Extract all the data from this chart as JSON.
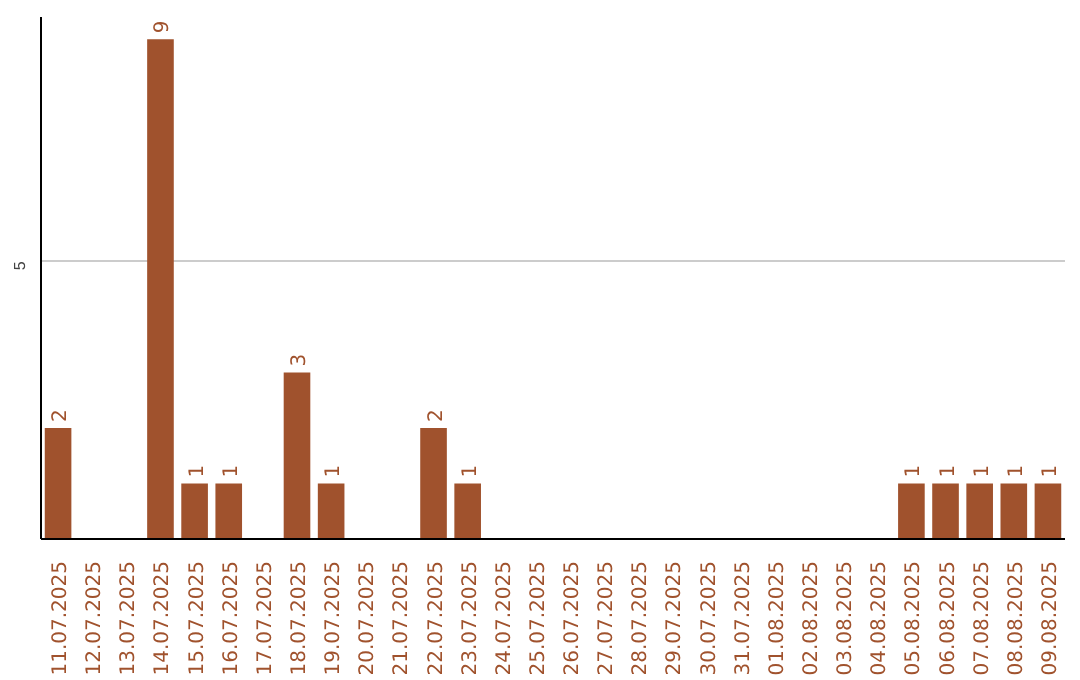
{
  "chart_data": {
    "type": "bar",
    "categories": [
      "11.07.2025",
      "12.07.2025",
      "13.07.2025",
      "14.07.2025",
      "15.07.2025",
      "16.07.2025",
      "17.07.2025",
      "18.07.2025",
      "19.07.2025",
      "20.07.2025",
      "21.07.2025",
      "22.07.2025",
      "23.07.2025",
      "24.07.2025",
      "25.07.2025",
      "26.07.2025",
      "27.07.2025",
      "28.07.2025",
      "29.07.2025",
      "30.07.2025",
      "31.07.2025",
      "01.08.2025",
      "02.08.2025",
      "03.08.2025",
      "04.08.2025",
      "05.08.2025",
      "06.08.2025",
      "07.08.2025",
      "08.08.2025",
      "09.08.2025"
    ],
    "values": [
      2,
      0,
      0,
      9,
      1,
      1,
      0,
      3,
      1,
      0,
      0,
      2,
      1,
      0,
      0,
      0,
      0,
      0,
      0,
      0,
      0,
      0,
      0,
      0,
      0,
      1,
      1,
      1,
      1,
      1
    ],
    "value_labels": [
      "2",
      null,
      null,
      "9",
      "1",
      "1",
      null,
      "3",
      "1",
      null,
      null,
      "2",
      "1",
      null,
      null,
      null,
      null,
      null,
      null,
      null,
      null,
      null,
      null,
      null,
      null,
      "1",
      "1",
      "1",
      "1",
      "1"
    ],
    "color": "#a0522d",
    "ylim": [
      0,
      9.4
    ],
    "yticks": [
      5
    ],
    "grid": "y"
  }
}
